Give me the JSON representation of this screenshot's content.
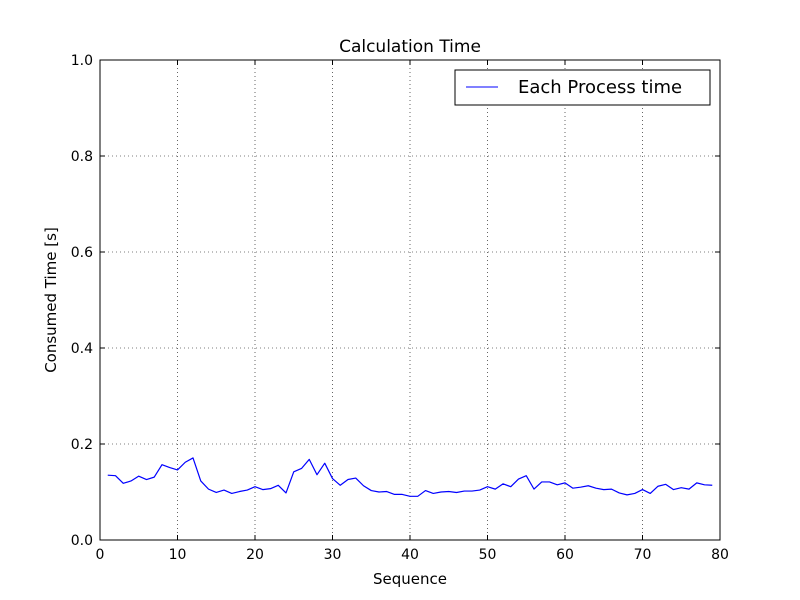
{
  "chart_data": {
    "type": "line",
    "title": "Calculation Time",
    "xlabel": "Sequence",
    "ylabel": "Consumed Time [s]",
    "xlim": [
      0,
      80
    ],
    "ylim": [
      0.0,
      1.0
    ],
    "xticks": [
      0,
      10,
      20,
      30,
      40,
      50,
      60,
      70,
      80
    ],
    "yticks": [
      0.0,
      0.2,
      0.4,
      0.6,
      0.8,
      1.0
    ],
    "xtick_labels": [
      "0",
      "10",
      "20",
      "30",
      "40",
      "50",
      "60",
      "70",
      "80"
    ],
    "ytick_labels": [
      "0.0",
      "0.2",
      "0.4",
      "0.6",
      "0.8",
      "1.0"
    ],
    "grid": true,
    "legend_position": "top-right",
    "series": [
      {
        "name": "Each Process time",
        "color": "#0000ff",
        "x": [
          1,
          2,
          3,
          4,
          5,
          6,
          7,
          8,
          9,
          10,
          11,
          12,
          13,
          14,
          15,
          16,
          17,
          18,
          19,
          20,
          21,
          22,
          23,
          24,
          25,
          26,
          27,
          28,
          29,
          30,
          31,
          32,
          33,
          34,
          35,
          36,
          37,
          38,
          39,
          40,
          41,
          42,
          43,
          44,
          45,
          46,
          47,
          48,
          49,
          50,
          51,
          52,
          53,
          54,
          55,
          56,
          57,
          58,
          59,
          60,
          61,
          62,
          63,
          64,
          65,
          66,
          67,
          68,
          69,
          70,
          71,
          72,
          73,
          74,
          75,
          76,
          77,
          78,
          79
        ],
        "y": [
          0.135,
          0.134,
          0.118,
          0.123,
          0.133,
          0.126,
          0.131,
          0.157,
          0.151,
          0.146,
          0.162,
          0.171,
          0.123,
          0.106,
          0.099,
          0.104,
          0.097,
          0.101,
          0.104,
          0.111,
          0.105,
          0.107,
          0.114,
          0.098,
          0.142,
          0.149,
          0.168,
          0.136,
          0.16,
          0.128,
          0.114,
          0.126,
          0.129,
          0.113,
          0.103,
          0.1,
          0.101,
          0.095,
          0.095,
          0.091,
          0.091,
          0.103,
          0.097,
          0.1,
          0.101,
          0.099,
          0.102,
          0.102,
          0.104,
          0.111,
          0.106,
          0.117,
          0.111,
          0.127,
          0.134,
          0.106,
          0.121,
          0.121,
          0.115,
          0.119,
          0.108,
          0.11,
          0.113,
          0.108,
          0.105,
          0.106,
          0.098,
          0.094,
          0.097,
          0.105,
          0.097,
          0.112,
          0.116,
          0.105,
          0.109,
          0.106,
          0.119,
          0.115,
          0.114
        ]
      }
    ]
  }
}
